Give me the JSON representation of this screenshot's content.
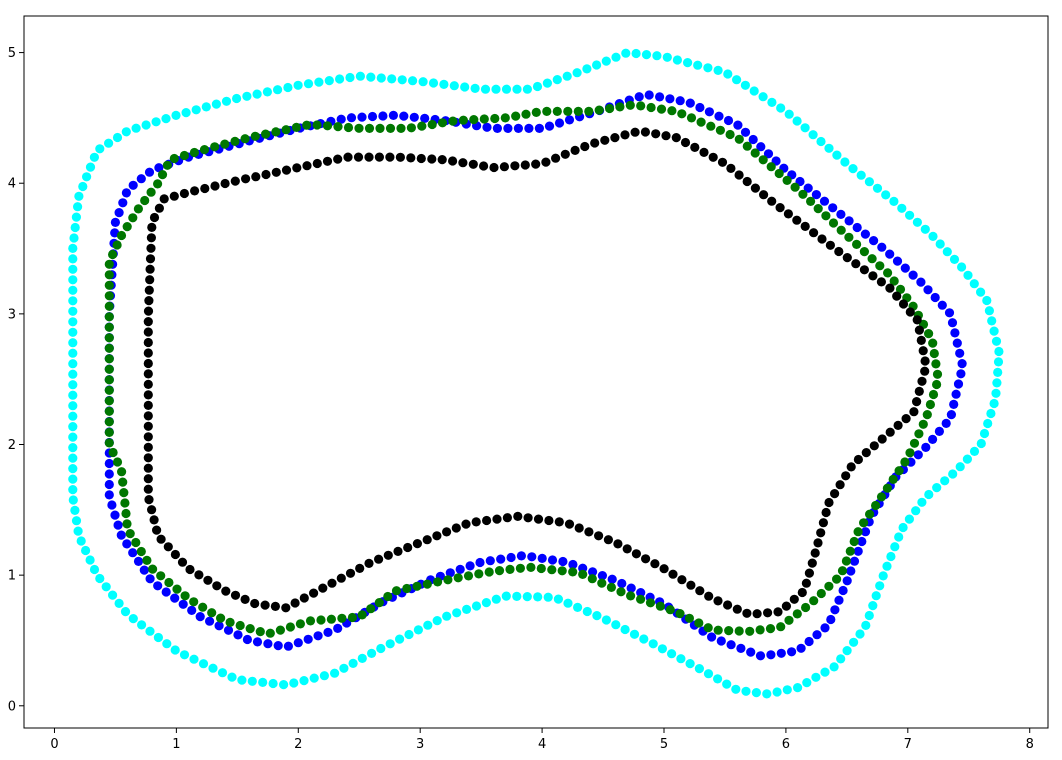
{
  "chart_data": {
    "type": "scatter",
    "title": "",
    "xlabel": "",
    "ylabel": "",
    "xlim": [
      -0.25,
      8.15
    ],
    "ylim": [
      -0.17,
      5.28
    ],
    "grid": false,
    "xticks": [
      "0",
      "1",
      "2",
      "3",
      "4",
      "5",
      "6",
      "7",
      "8"
    ],
    "yticks": [
      "0",
      "1",
      "2",
      "3",
      "4",
      "5"
    ],
    "series": [
      {
        "color": "#00ffff",
        "curve": [
          [
            0.2,
            3.9
          ],
          [
            0.15,
            3.5
          ],
          [
            0.15,
            2.5
          ],
          [
            0.15,
            1.6
          ],
          [
            0.2,
            1.3
          ],
          [
            0.35,
            1.0
          ],
          [
            0.6,
            0.7
          ],
          [
            1.0,
            0.42
          ],
          [
            1.5,
            0.2
          ],
          [
            1.9,
            0.16
          ],
          [
            2.3,
            0.25
          ],
          [
            2.7,
            0.45
          ],
          [
            3.2,
            0.68
          ],
          [
            3.7,
            0.84
          ],
          [
            4.1,
            0.83
          ],
          [
            4.5,
            0.67
          ],
          [
            4.9,
            0.48
          ],
          [
            5.3,
            0.28
          ],
          [
            5.6,
            0.12
          ],
          [
            5.85,
            0.09
          ],
          [
            6.1,
            0.14
          ],
          [
            6.4,
            0.3
          ],
          [
            6.65,
            0.6
          ],
          [
            6.8,
            1.0
          ],
          [
            6.95,
            1.35
          ],
          [
            7.15,
            1.6
          ],
          [
            7.4,
            1.8
          ],
          [
            7.6,
            2.0
          ],
          [
            7.72,
            2.35
          ],
          [
            7.75,
            2.7
          ],
          [
            7.65,
            3.1
          ],
          [
            7.45,
            3.35
          ],
          [
            7.2,
            3.6
          ],
          [
            6.9,
            3.85
          ],
          [
            6.5,
            4.15
          ],
          [
            6.0,
            4.55
          ],
          [
            5.5,
            4.85
          ],
          [
            5.0,
            4.97
          ],
          [
            4.7,
            5.0
          ],
          [
            4.3,
            4.85
          ],
          [
            3.9,
            4.72
          ],
          [
            3.5,
            4.72
          ],
          [
            3.0,
            4.78
          ],
          [
            2.5,
            4.82
          ],
          [
            2.0,
            4.75
          ],
          [
            1.5,
            4.65
          ],
          [
            1.0,
            4.52
          ],
          [
            0.6,
            4.4
          ],
          [
            0.35,
            4.25
          ],
          [
            0.2,
            3.9
          ]
        ]
      },
      {
        "color": "#0000ff",
        "curve": [
          [
            0.5,
            3.7
          ],
          [
            0.45,
            3.0
          ],
          [
            0.45,
            1.6
          ],
          [
            0.55,
            1.3
          ],
          [
            0.8,
            0.95
          ],
          [
            1.2,
            0.68
          ],
          [
            1.6,
            0.5
          ],
          [
            1.9,
            0.45
          ],
          [
            2.3,
            0.58
          ],
          [
            2.7,
            0.8
          ],
          [
            3.1,
            0.97
          ],
          [
            3.5,
            1.1
          ],
          [
            3.85,
            1.15
          ],
          [
            4.2,
            1.1
          ],
          [
            4.6,
            0.96
          ],
          [
            5.0,
            0.78
          ],
          [
            5.4,
            0.52
          ],
          [
            5.8,
            0.38
          ],
          [
            6.1,
            0.42
          ],
          [
            6.35,
            0.62
          ],
          [
            6.5,
            0.95
          ],
          [
            6.7,
            1.45
          ],
          [
            6.9,
            1.75
          ],
          [
            7.15,
            1.98
          ],
          [
            7.35,
            2.2
          ],
          [
            7.45,
            2.6
          ],
          [
            7.35,
            3.0
          ],
          [
            7.1,
            3.25
          ],
          [
            6.8,
            3.5
          ],
          [
            6.4,
            3.8
          ],
          [
            6.0,
            4.1
          ],
          [
            5.6,
            4.45
          ],
          [
            5.2,
            4.62
          ],
          [
            4.85,
            4.68
          ],
          [
            4.45,
            4.55
          ],
          [
            4.0,
            4.42
          ],
          [
            3.6,
            4.42
          ],
          [
            3.2,
            4.48
          ],
          [
            2.8,
            4.52
          ],
          [
            2.4,
            4.5
          ],
          [
            2.0,
            4.42
          ],
          [
            1.5,
            4.3
          ],
          [
            1.1,
            4.2
          ],
          [
            0.8,
            4.1
          ],
          [
            0.6,
            3.95
          ],
          [
            0.5,
            3.7
          ]
        ]
      },
      {
        "color": "#007700",
        "curve": [
          [
            0.55,
            3.6
          ],
          [
            0.45,
            3.4
          ],
          [
            0.45,
            2.0
          ],
          [
            0.55,
            1.8
          ],
          [
            0.6,
            1.35
          ],
          [
            0.8,
            1.05
          ],
          [
            1.1,
            0.82
          ],
          [
            1.4,
            0.65
          ],
          [
            1.75,
            0.55
          ],
          [
            2.1,
            0.65
          ],
          [
            2.5,
            0.68
          ],
          [
            2.8,
            0.88
          ],
          [
            3.2,
            0.96
          ],
          [
            3.6,
            1.03
          ],
          [
            3.9,
            1.06
          ],
          [
            4.3,
            1.02
          ],
          [
            4.7,
            0.85
          ],
          [
            5.1,
            0.72
          ],
          [
            5.4,
            0.58
          ],
          [
            5.7,
            0.57
          ],
          [
            5.95,
            0.6
          ],
          [
            6.2,
            0.78
          ],
          [
            6.45,
            1.0
          ],
          [
            6.6,
            1.35
          ],
          [
            6.8,
            1.62
          ],
          [
            7.0,
            1.9
          ],
          [
            7.15,
            2.2
          ],
          [
            7.25,
            2.5
          ],
          [
            7.2,
            2.8
          ],
          [
            7.05,
            3.05
          ],
          [
            6.85,
            3.3
          ],
          [
            6.5,
            3.6
          ],
          [
            6.1,
            3.95
          ],
          [
            5.6,
            4.35
          ],
          [
            5.1,
            4.55
          ],
          [
            4.75,
            4.6
          ],
          [
            4.4,
            4.55
          ],
          [
            4.0,
            4.55
          ],
          [
            3.7,
            4.5
          ],
          [
            3.3,
            4.48
          ],
          [
            2.9,
            4.42
          ],
          [
            2.5,
            4.42
          ],
          [
            2.1,
            4.45
          ],
          [
            1.6,
            4.35
          ],
          [
            1.2,
            4.25
          ],
          [
            0.95,
            4.18
          ],
          [
            0.85,
            4.0
          ],
          [
            0.7,
            3.82
          ],
          [
            0.55,
            3.6
          ]
        ]
      },
      {
        "color": "#000000",
        "curve": [
          [
            0.9,
            3.88
          ],
          [
            0.8,
            3.7
          ],
          [
            0.77,
            3.0
          ],
          [
            0.77,
            1.6
          ],
          [
            0.85,
            1.3
          ],
          [
            1.1,
            1.05
          ],
          [
            1.4,
            0.88
          ],
          [
            1.65,
            0.78
          ],
          [
            1.9,
            0.75
          ],
          [
            2.2,
            0.9
          ],
          [
            2.6,
            1.1
          ],
          [
            3.0,
            1.25
          ],
          [
            3.4,
            1.4
          ],
          [
            3.8,
            1.45
          ],
          [
            4.2,
            1.4
          ],
          [
            4.6,
            1.25
          ],
          [
            5.0,
            1.05
          ],
          [
            5.4,
            0.82
          ],
          [
            5.7,
            0.7
          ],
          [
            5.95,
            0.72
          ],
          [
            6.15,
            0.88
          ],
          [
            6.25,
            1.2
          ],
          [
            6.35,
            1.55
          ],
          [
            6.55,
            1.85
          ],
          [
            6.8,
            2.05
          ],
          [
            7.05,
            2.25
          ],
          [
            7.15,
            2.6
          ],
          [
            7.08,
            2.95
          ],
          [
            6.85,
            3.2
          ],
          [
            6.4,
            3.5
          ],
          [
            5.9,
            3.85
          ],
          [
            5.5,
            4.15
          ],
          [
            5.1,
            4.35
          ],
          [
            4.8,
            4.4
          ],
          [
            4.4,
            4.3
          ],
          [
            4.0,
            4.15
          ],
          [
            3.6,
            4.12
          ],
          [
            3.2,
            4.18
          ],
          [
            2.8,
            4.2
          ],
          [
            2.4,
            4.2
          ],
          [
            2.0,
            4.12
          ],
          [
            1.5,
            4.02
          ],
          [
            1.1,
            3.93
          ],
          [
            0.9,
            3.88
          ]
        ]
      }
    ]
  }
}
